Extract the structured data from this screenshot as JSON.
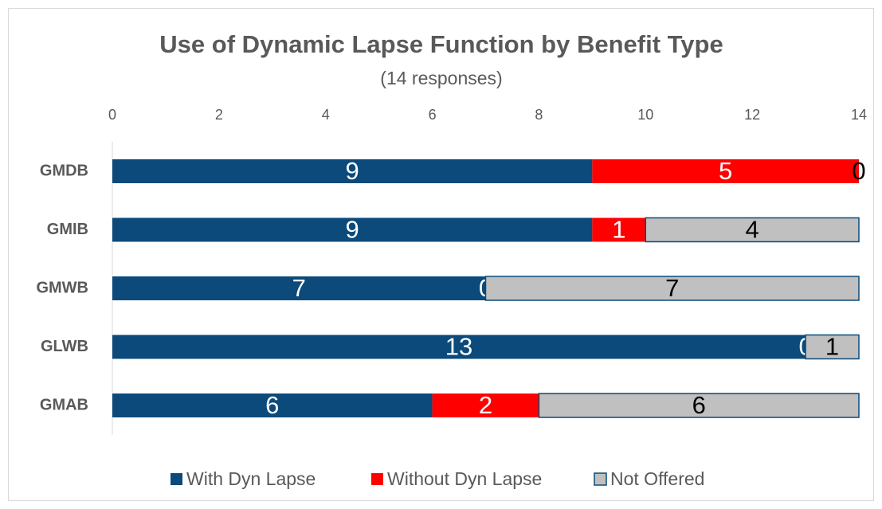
{
  "chart_data": {
    "type": "stacked_barh",
    "title": "Use of Dynamic Lapse Function by Benefit Type",
    "subtitle": "(14 responses)",
    "categories": [
      "GMDB",
      "GMIB",
      "GMWB",
      "GLWB",
      "GMAB"
    ],
    "series": [
      {
        "name": "With Dyn Lapse",
        "color": "#0b4a7a",
        "label_color": "#ffffff",
        "values": [
          9,
          9,
          7,
          13,
          6
        ]
      },
      {
        "name": "Without Dyn Lapse",
        "color": "#ff0000",
        "label_color": "#ffffff",
        "values": [
          5,
          1,
          0,
          0,
          2
        ]
      },
      {
        "name": "Not Offered",
        "color": "#c0c0c0",
        "edgecolor": "#0b4a7a",
        "label_color": "#000000",
        "values": [
          0,
          4,
          7,
          1,
          6
        ]
      }
    ],
    "xlim": [
      0,
      14
    ],
    "xticks": [
      0,
      2,
      4,
      6,
      8,
      10,
      12,
      14
    ],
    "legend": "bottom"
  }
}
